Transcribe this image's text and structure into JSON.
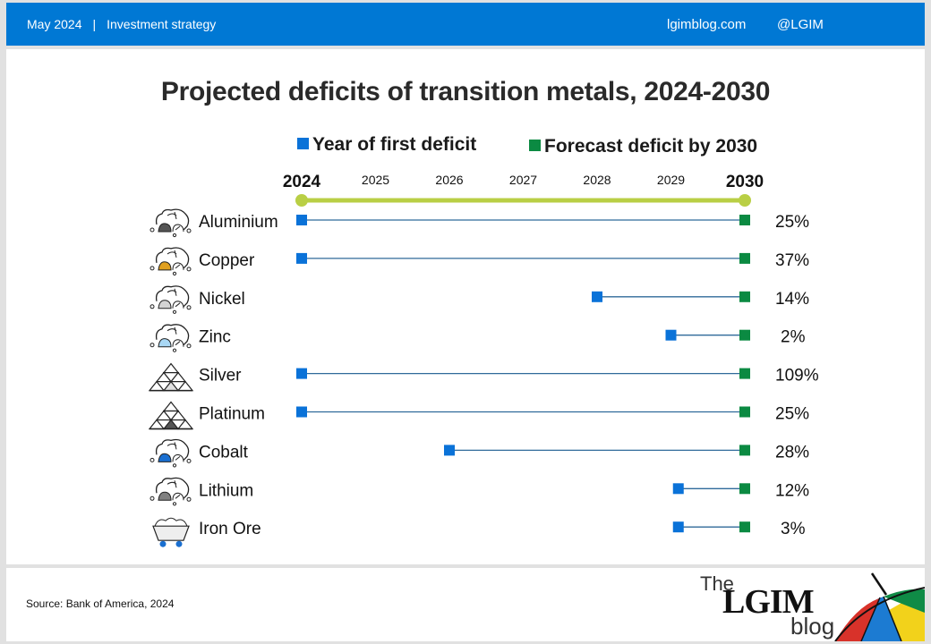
{
  "header": {
    "date": "May 2024",
    "separator": "|",
    "section": "Investment strategy",
    "site": "lgimblog.com",
    "handle": "@LGIM"
  },
  "footer": {
    "source": "Source: Bank of America, 2024",
    "logo": {
      "the": "The",
      "brand": "LGIM",
      "blog": "blog"
    }
  },
  "colors": {
    "header_bg": "#0078d4",
    "first_deficit": "#0a72d8",
    "forecast": "#0b8a42",
    "axis": "#b9cf45",
    "connector": "#2f6a9a"
  },
  "chart_data": {
    "type": "dumbbell",
    "title": "Projected deficits of transition metals, 2024-2030",
    "legend": [
      {
        "name": "Year of first deficit",
        "color": "#0a72d8"
      },
      {
        "name": "Forecast deficit by 2030",
        "color": "#0b8a42"
      }
    ],
    "legend_position": "top",
    "x_ticks": [
      "2024",
      "2025",
      "2026",
      "2027",
      "2028",
      "2029",
      "2030"
    ],
    "x_bold_ticks": [
      "2024",
      "2030"
    ],
    "xlim": [
      2024,
      2030
    ],
    "series": [
      {
        "metal": "Aluminium",
        "icon": "ore-dark-icon",
        "icon_color": "#555555",
        "first_deficit_year": 2024,
        "end_year": 2030,
        "deficit_2030": "25%"
      },
      {
        "metal": "Copper",
        "icon": "ore-copper-icon",
        "icon_color": "#e0a020",
        "first_deficit_year": 2024,
        "end_year": 2030,
        "deficit_2030": "37%"
      },
      {
        "metal": "Nickel",
        "icon": "ore-light-icon",
        "icon_color": "#d4d4d4",
        "first_deficit_year": 2028,
        "end_year": 2030,
        "deficit_2030": "14%"
      },
      {
        "metal": "Zinc",
        "icon": "ore-blue-light-icon",
        "icon_color": "#a9d8f5",
        "first_deficit_year": 2029,
        "end_year": 2030,
        "deficit_2030": "2%"
      },
      {
        "metal": "Silver",
        "icon": "bars-silver-icon",
        "icon_color": "#e0e0e0",
        "first_deficit_year": 2024,
        "end_year": 2030,
        "deficit_2030": "109%"
      },
      {
        "metal": "Platinum",
        "icon": "bars-platinum-icon",
        "icon_color": "#555555",
        "first_deficit_year": 2024,
        "end_year": 2030,
        "deficit_2030": "25%"
      },
      {
        "metal": "Cobalt",
        "icon": "ore-cobalt-icon",
        "icon_color": "#1a6fd0",
        "first_deficit_year": 2026,
        "end_year": 2030,
        "deficit_2030": "28%"
      },
      {
        "metal": "Lithium",
        "icon": "ore-grey-icon",
        "icon_color": "#808080",
        "first_deficit_year": 2029.1,
        "end_year": 2030,
        "deficit_2030": "12%"
      },
      {
        "metal": "Iron Ore",
        "icon": "mine-cart-icon",
        "icon_color": "#1a6fd0",
        "first_deficit_year": 2029.1,
        "end_year": 2030,
        "deficit_2030": "3%"
      }
    ]
  }
}
